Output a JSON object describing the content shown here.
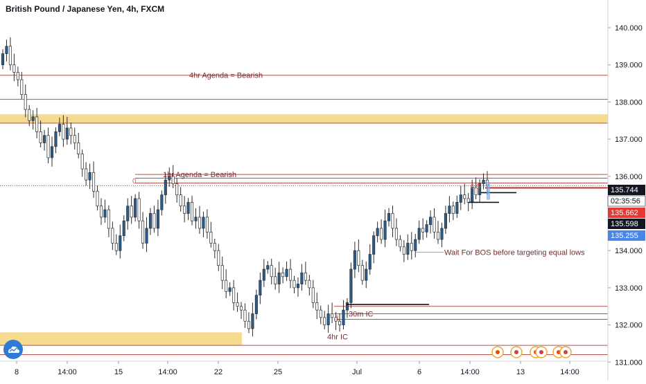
{
  "title": "British Pound / Japanese Yen, 4h, FXCM",
  "colors": {
    "up": "#2a5d8f",
    "down": "#ffffff",
    "wick": "#2b2b2b",
    "level_line": "#b5504a",
    "zone_fill": "#f5d47c",
    "annotation_text": "#7a2a2a",
    "price_current_bg": "#131722",
    "price_red_bg": "#e53935",
    "price_blue_bg": "#4a86e8"
  },
  "chart_data": {
    "type": "candlestick",
    "title": "British Pound / Japanese Yen, 4h, FXCM",
    "y_axis": {
      "range": [
        131.0,
        140.6
      ],
      "ticks": [
        "131.000",
        "132.000",
        "133.000",
        "134.000",
        "135.000",
        "136.000",
        "137.000",
        "138.000",
        "139.000",
        "140.000"
      ]
    },
    "x_axis": {
      "ticks": [
        "8",
        "14:00",
        "15",
        "14:00",
        "22",
        "25",
        "Jul",
        "6",
        "14:00",
        "13",
        "14:00"
      ]
    },
    "candles_close": [
      139.3,
      139.5,
      139.0,
      138.8,
      138.6,
      138.2,
      137.8,
      137.5,
      137.6,
      137.2,
      136.9,
      137.1,
      136.5,
      136.8,
      137.2,
      137.4,
      137.0,
      137.3,
      137.1,
      136.9,
      136.6,
      136.2,
      135.9,
      136.1,
      135.6,
      135.2,
      134.9,
      135.1,
      134.6,
      134.2,
      134.0,
      134.4,
      134.8,
      135.2,
      134.9,
      135.4,
      134.8,
      134.2,
      134.6,
      135.0,
      134.6,
      135.1,
      135.5,
      135.9,
      136.0,
      135.8,
      135.5,
      135.2,
      135.0,
      135.3,
      134.8,
      134.9,
      134.6,
      134.9,
      134.5,
      134.2,
      134.0,
      133.6,
      133.2,
      132.9,
      133.0,
      132.6,
      132.5,
      132.4,
      132.1,
      131.9,
      132.3,
      132.8,
      133.2,
      133.5,
      133.6,
      133.3,
      133.1,
      133.4,
      133.3,
      133.5,
      133.2,
      133.0,
      133.1,
      133.4,
      133.2,
      133.0,
      132.6,
      132.4,
      132.2,
      132.0,
      132.3,
      132.2,
      132.1,
      132.0,
      132.4,
      132.6,
      133.5,
      134.0,
      133.6,
      133.2,
      133.5,
      133.9,
      134.4,
      134.6,
      134.3,
      134.8,
      135.0,
      134.6,
      134.3,
      134.1,
      133.9,
      134.2,
      134.0,
      134.3,
      134.6,
      134.5,
      134.7,
      134.9,
      134.5,
      134.3,
      134.6,
      135.0,
      135.2,
      135.0,
      135.3,
      135.5,
      135.4,
      135.3,
      135.7,
      135.5,
      135.8,
      135.9,
      135.744
    ],
    "last_close": 135.744,
    "annotations": [
      {
        "text": "4hr Agenda = Bearish",
        "price": 138.72
      },
      {
        "text": "1hr Agenda = Bearish",
        "price": 136.05
      },
      {
        "text": "Wait For BOS before targeting equal lows",
        "price": 133.96
      },
      {
        "text": "30m IC",
        "price": 132.3
      },
      {
        "text": "4hr IC",
        "price": 131.95
      },
      {
        "text": "0",
        "price": 135.88
      },
      {
        "text": "0.5",
        "price": 135.74
      },
      {
        "text": "1",
        "price": 132.2
      }
    ],
    "horizontal_levels": [
      138.72,
      138.07,
      137.43,
      136.05,
      135.95,
      135.82,
      132.5,
      132.3,
      132.15,
      131.45,
      131.2
    ],
    "supply_demand_zones": [
      {
        "from": 137.43,
        "to": 137.67
      },
      {
        "from": 131.45,
        "to": 131.8
      }
    ],
    "price_labels": [
      {
        "value": "135.744",
        "style": "current"
      },
      {
        "value": "02:35:56",
        "style": "countdown"
      },
      {
        "value": "135.662",
        "style": "red"
      },
      {
        "value": "135.598",
        "style": "black"
      },
      {
        "value": "135.255",
        "style": "blue"
      }
    ]
  }
}
